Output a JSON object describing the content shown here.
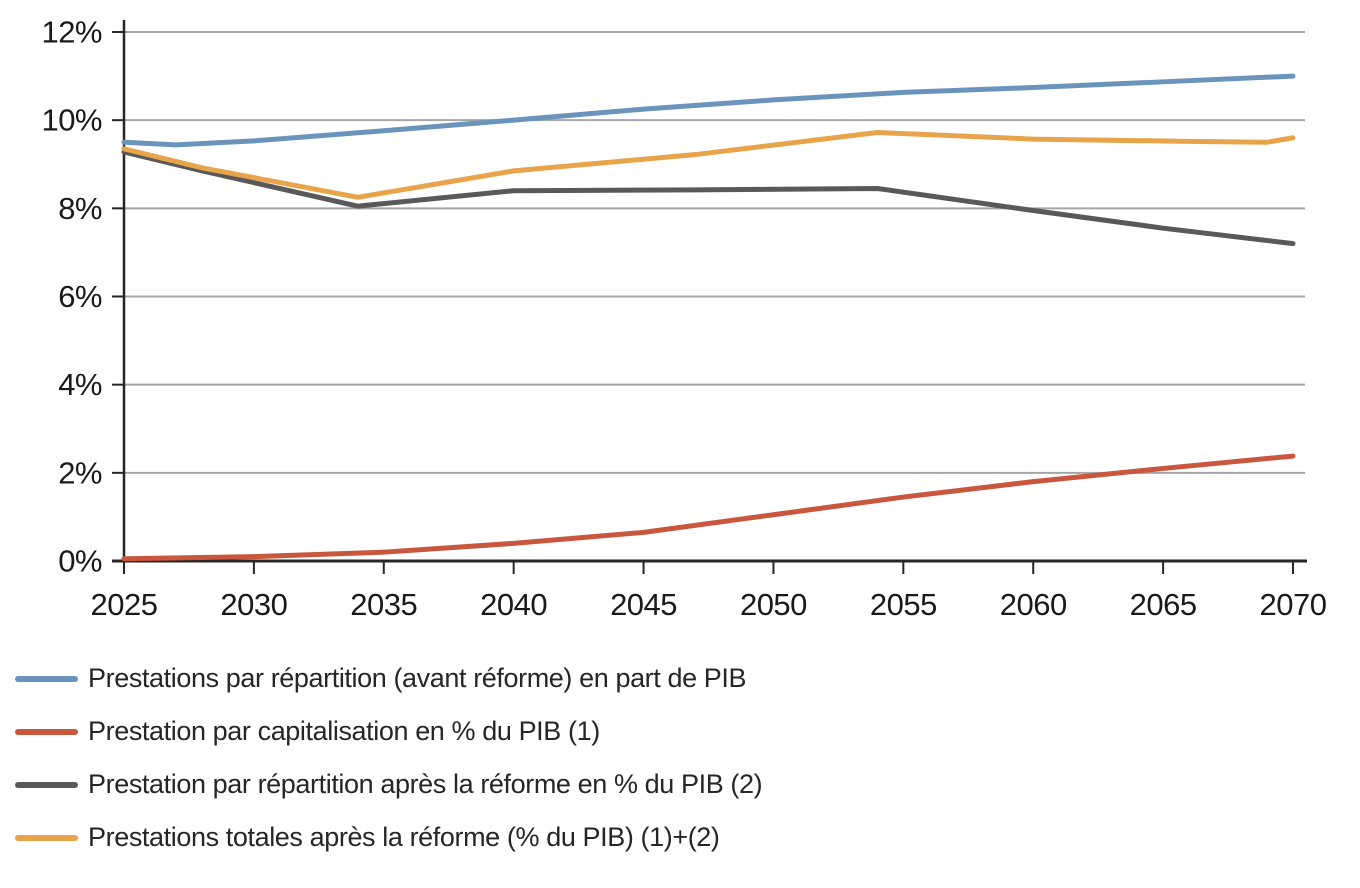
{
  "page": {
    "background": "#ffffff"
  },
  "chart_data": {
    "type": "line",
    "title": "",
    "xlabel": "",
    "ylabel": "",
    "grid": true,
    "legend_position": "bottom-left",
    "xlim": [
      2025,
      2070
    ],
    "ylim": [
      0,
      12
    ],
    "x_ticks": [
      2025,
      2030,
      2035,
      2040,
      2045,
      2050,
      2055,
      2060,
      2065,
      2070
    ],
    "y_tick_values": [
      0,
      2,
      4,
      6,
      8,
      10,
      12
    ],
    "y_tick_labels": [
      "0%",
      "2%",
      "4%",
      "6%",
      "8%",
      "10%",
      "12%"
    ],
    "axis_color": "#262626",
    "grid_color": "#a6a6a6",
    "label_color": "#1a1a1a",
    "series": [
      {
        "name": "Prestations par répartition (avant réforme) en part de PIB",
        "color": "#6b94bd",
        "points": [
          [
            2025,
            9.5
          ],
          [
            2027,
            9.44
          ],
          [
            2030,
            9.53
          ],
          [
            2035,
            9.76
          ],
          [
            2040,
            10.0
          ],
          [
            2045,
            10.25
          ],
          [
            2050,
            10.46
          ],
          [
            2055,
            10.63
          ],
          [
            2060,
            10.74
          ],
          [
            2065,
            10.87
          ],
          [
            2070,
            11.0
          ]
        ]
      },
      {
        "name": "Prestation par capitalisation en % du PIB (1)",
        "color": "#c8573d",
        "points": [
          [
            2025,
            0.05
          ],
          [
            2030,
            0.1
          ],
          [
            2035,
            0.2
          ],
          [
            2040,
            0.4
          ],
          [
            2045,
            0.65
          ],
          [
            2050,
            1.05
          ],
          [
            2055,
            1.45
          ],
          [
            2060,
            1.8
          ],
          [
            2065,
            2.1
          ],
          [
            2070,
            2.38
          ]
        ]
      },
      {
        "name": "Prestation par répartition après la réforme en % du PIB (2)",
        "color": "#595959",
        "points": [
          [
            2025,
            9.28
          ],
          [
            2028,
            8.85
          ],
          [
            2034,
            8.05
          ],
          [
            2040,
            8.4
          ],
          [
            2047,
            8.42
          ],
          [
            2054,
            8.45
          ],
          [
            2060,
            7.95
          ],
          [
            2065,
            7.55
          ],
          [
            2070,
            7.2
          ]
        ]
      },
      {
        "name": "Prestations totales après la réforme (% du PIB) (1)+(2)",
        "color": "#e8a44a",
        "points": [
          [
            2025,
            9.35
          ],
          [
            2028,
            8.92
          ],
          [
            2034,
            8.25
          ],
          [
            2040,
            8.85
          ],
          [
            2047,
            9.22
          ],
          [
            2054,
            9.72
          ],
          [
            2060,
            9.57
          ],
          [
            2066,
            9.52
          ],
          [
            2069,
            9.5
          ],
          [
            2070,
            9.6
          ]
        ]
      }
    ]
  }
}
